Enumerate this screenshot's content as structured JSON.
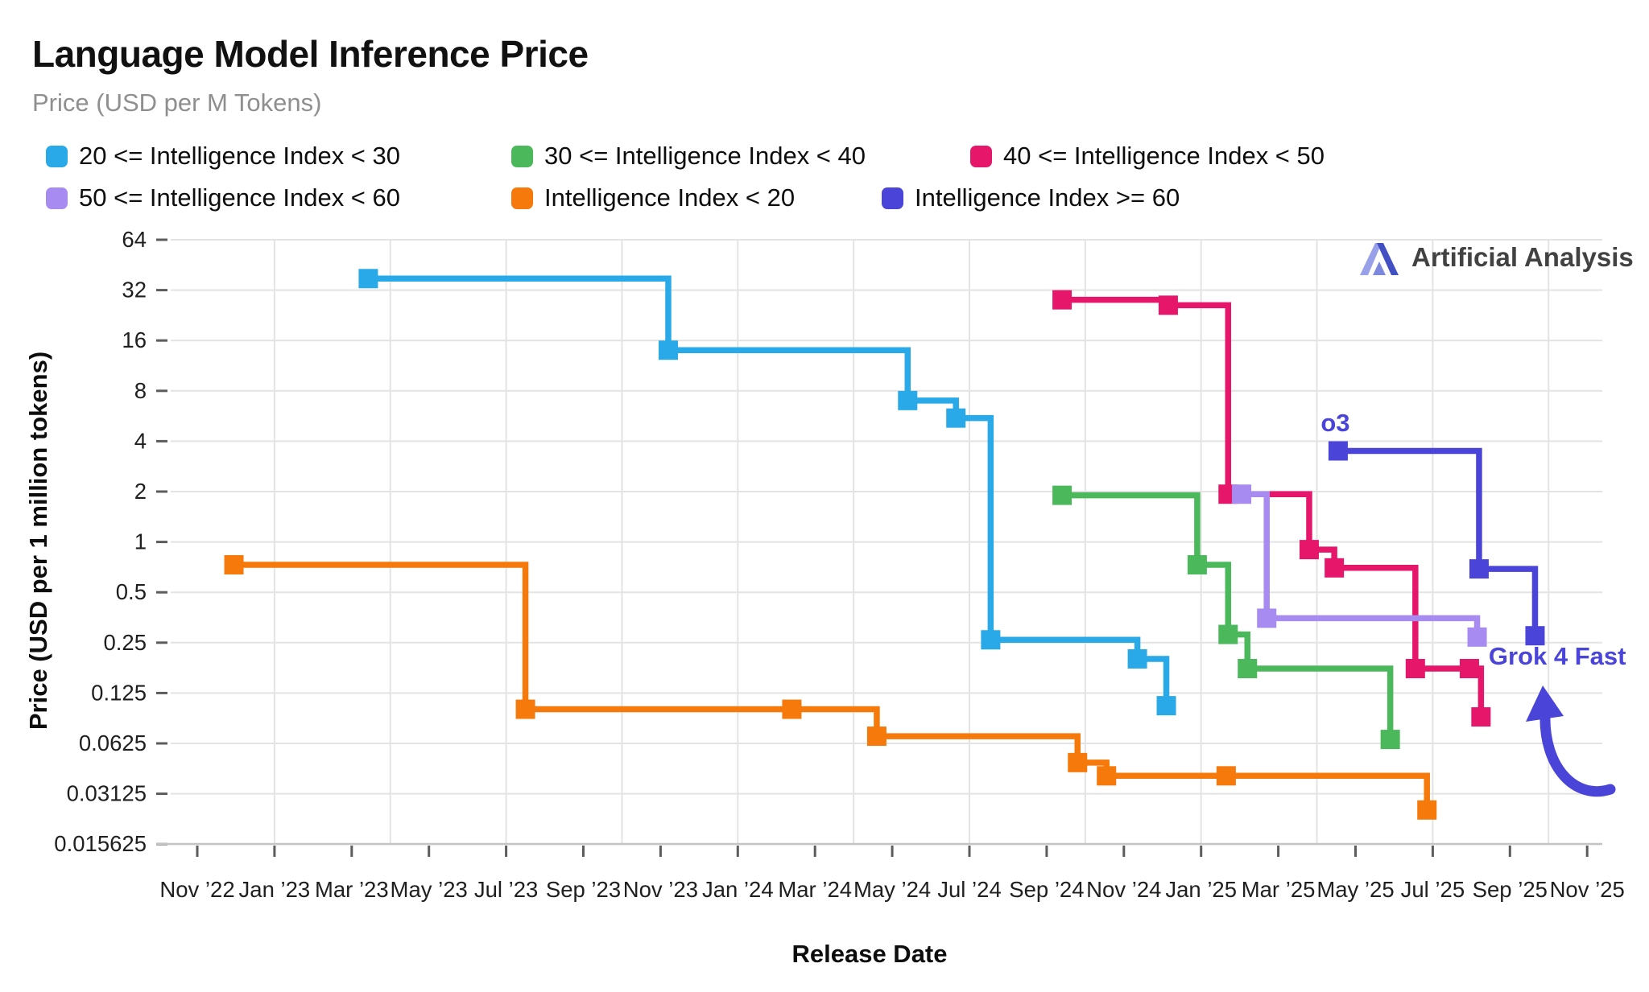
{
  "header": {
    "title": "Language Model Inference Price",
    "subtitle": "Price (USD per M Tokens)"
  },
  "watermark": {
    "label": "Artificial Analysis"
  },
  "axes": {
    "x_title": "Release Date",
    "y_title": "Price (USD per 1 million tokens)",
    "y_scale": "log2",
    "y_ticks": [
      {
        "value": 64,
        "label": "64"
      },
      {
        "value": 32,
        "label": "32"
      },
      {
        "value": 16,
        "label": "16"
      },
      {
        "value": 8,
        "label": "8"
      },
      {
        "value": 4,
        "label": "4"
      },
      {
        "value": 2,
        "label": "2"
      },
      {
        "value": 1,
        "label": "1"
      },
      {
        "value": 0.5,
        "label": "0.5"
      },
      {
        "value": 0.25,
        "label": "0.25"
      },
      {
        "value": 0.125,
        "label": "0.125"
      },
      {
        "value": 0.0625,
        "label": "0.0625"
      },
      {
        "value": 0.03125,
        "label": "0.03125"
      },
      {
        "value": 0.015625,
        "label": "0.015625"
      }
    ],
    "x_ticks": [
      {
        "m": 0,
        "label": "Nov ’22"
      },
      {
        "m": 2,
        "label": "Jan ’23"
      },
      {
        "m": 4,
        "label": "Mar ’23"
      },
      {
        "m": 6,
        "label": "May ’23"
      },
      {
        "m": 8,
        "label": "Jul ’23"
      },
      {
        "m": 10,
        "label": "Sep ’23"
      },
      {
        "m": 12,
        "label": "Nov ’23"
      },
      {
        "m": 14,
        "label": "Jan ’24"
      },
      {
        "m": 16,
        "label": "Mar ’24"
      },
      {
        "m": 18,
        "label": "May ’24"
      },
      {
        "m": 20,
        "label": "Jul ’24"
      },
      {
        "m": 22,
        "label": "Sep ’24"
      },
      {
        "m": 24,
        "label": "Nov ’24"
      },
      {
        "m": 26,
        "label": "Jan ’25"
      },
      {
        "m": 28,
        "label": "Mar ’25"
      },
      {
        "m": 30,
        "label": "May ’25"
      },
      {
        "m": 32,
        "label": "Jul ’25"
      },
      {
        "m": 34,
        "label": "Sep ’25"
      },
      {
        "m": 36,
        "label": "Nov ’25"
      }
    ],
    "grid_months": [
      2,
      5,
      8,
      11,
      14,
      17,
      20,
      23,
      26,
      29,
      32,
      35
    ]
  },
  "chart_data": {
    "type": "line",
    "subtype": "step-after",
    "title": "Language Model Inference Price",
    "xlabel": "Release Date",
    "ylabel": "Price (USD per 1 million tokens)",
    "x_range": [
      "2022-11-01",
      "2025-11-30"
    ],
    "ylim": [
      0.015625,
      64
    ],
    "grid": true,
    "legend_position": "top",
    "series": [
      {
        "name": "20 <= Intelligence Index < 30",
        "color": "#29A9E8",
        "points": [
          {
            "date": "2023-03-14",
            "m": 4.43,
            "price": 37.5
          },
          {
            "date": "2023-11-06",
            "m": 12.2,
            "price": 14
          },
          {
            "date": "2024-05-13",
            "m": 18.4,
            "price": 7
          },
          {
            "date": "2024-06-20",
            "m": 19.65,
            "price": 5.5
          },
          {
            "date": "2024-07-18",
            "m": 20.55,
            "price": 0.26
          },
          {
            "date": "2024-11-12",
            "m": 24.35,
            "price": 0.2
          },
          {
            "date": "2024-12-03",
            "m": 25.1,
            "price": 0.105
          }
        ]
      },
      {
        "name": "30 <= Intelligence Index < 40",
        "color": "#4CB85C",
        "points": [
          {
            "date": "2024-09-12",
            "m": 22.4,
            "price": 1.9
          },
          {
            "date": "2024-12-26",
            "m": 25.9,
            "price": 0.73
          },
          {
            "date": "2025-01-21",
            "m": 26.7,
            "price": 0.28
          },
          {
            "date": "2025-02-06",
            "m": 27.2,
            "price": 0.175
          },
          {
            "date": "2025-06-28",
            "m": 30.9,
            "price": 0.066
          }
        ]
      },
      {
        "name": "40 <= Intelligence Index < 50",
        "color": "#E6176B",
        "points": [
          {
            "date": "2024-09-12",
            "m": 22.4,
            "price": 28
          },
          {
            "date": "2024-12-05",
            "m": 25.15,
            "price": 26
          },
          {
            "date": "2025-01-20",
            "m": 26.7,
            "price": 1.93
          },
          {
            "date": "2025-03-25",
            "m": 28.8,
            "price": 0.9
          },
          {
            "date": "2025-04-14",
            "m": 29.45,
            "price": 0.7
          },
          {
            "date": "2025-06-17",
            "m": 31.55,
            "price": 0.175
          },
          {
            "date": "2025-07-30",
            "m": 32.95,
            "price": 0.175
          },
          {
            "date": "2025-08-08",
            "m": 33.25,
            "price": 0.09
          }
        ]
      },
      {
        "name": "50 <= Intelligence Index < 60",
        "color": "#A78BF0",
        "points": [
          {
            "date": "2025-02-01",
            "m": 27.05,
            "price": 1.93
          },
          {
            "date": "2025-02-22",
            "m": 27.7,
            "price": 0.35
          },
          {
            "date": "2025-08-05",
            "m": 33.15,
            "price": 0.27
          }
        ]
      },
      {
        "name": "Intelligence Index < 20",
        "color": "#F5790B",
        "points": [
          {
            "date": "2022-11-28",
            "m": 0.95,
            "price": 0.73
          },
          {
            "date": "2023-07-15",
            "m": 8.5,
            "price": 0.1
          },
          {
            "date": "2024-02-13",
            "m": 15.4,
            "price": 0.1
          },
          {
            "date": "2024-04-18",
            "m": 17.6,
            "price": 0.069
          },
          {
            "date": "2024-09-28",
            "m": 22.8,
            "price": 0.048
          },
          {
            "date": "2024-10-17",
            "m": 23.55,
            "price": 0.04
          },
          {
            "date": "2025-01-20",
            "m": 26.65,
            "price": 0.04
          },
          {
            "date": "2025-06-26",
            "m": 31.85,
            "price": 0.025
          }
        ]
      },
      {
        "name": "Intelligence Index >= 60",
        "color": "#4A44D8",
        "points": [
          {
            "date": "2025-04-16",
            "m": 29.55,
            "price": 3.5
          },
          {
            "date": "2025-08-07",
            "m": 33.2,
            "price": 0.69
          },
          {
            "date": "2025-09-19",
            "m": 34.65,
            "price": 0.275
          }
        ]
      }
    ],
    "annotations": [
      {
        "label": "o3",
        "m": 29.1,
        "price": 4.6,
        "anchor": "start"
      },
      {
        "label": "Grok 4 Fast",
        "m": 33.45,
        "price": 0.185,
        "anchor": "start"
      }
    ]
  },
  "legend_layout": {
    "rows": [
      [
        0,
        1,
        2
      ],
      [
        3,
        4,
        5
      ]
    ],
    "widths": [
      [
        578,
        570,
        0
      ],
      [
        578,
        460,
        0
      ]
    ]
  }
}
